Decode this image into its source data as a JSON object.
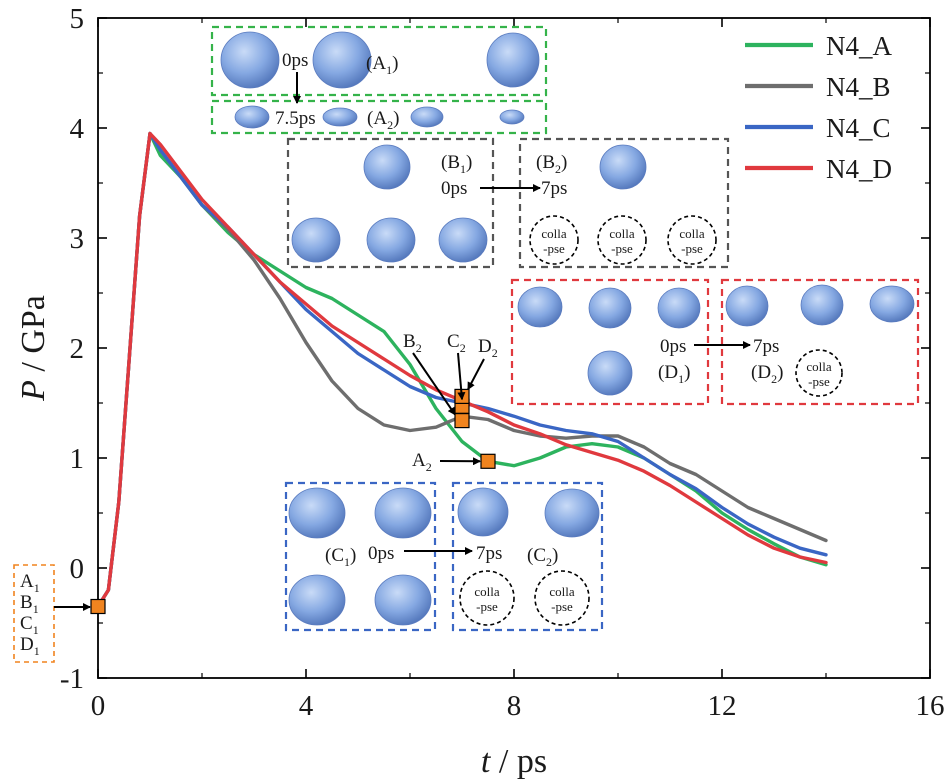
{
  "chart_data": {
    "type": "line",
    "xlabel": {
      "var": "t",
      "unit": " / ps"
    },
    "ylabel": {
      "var": "P",
      "unit": " / GPa"
    },
    "xlim": [
      0,
      16
    ],
    "ylim": [
      -1,
      5
    ],
    "xticks": [
      0,
      4,
      8,
      12,
      16
    ],
    "yticks": [
      -1,
      0,
      1,
      2,
      3,
      4,
      5
    ],
    "xtick_labels": [
      "0",
      "4",
      "8",
      "12",
      "16"
    ],
    "ytick_labels": [
      "-1",
      "0",
      "1",
      "2",
      "3",
      "4",
      "5"
    ],
    "legend_position": "top-right",
    "series": [
      {
        "name": "N4_A",
        "color": "#2db35e",
        "points": [
          [
            0,
            -0.35
          ],
          [
            0.2,
            -0.2
          ],
          [
            0.4,
            0.6
          ],
          [
            0.6,
            1.9
          ],
          [
            0.8,
            3.2
          ],
          [
            1.0,
            3.95
          ],
          [
            1.2,
            3.75
          ],
          [
            1.6,
            3.55
          ],
          [
            2.0,
            3.3
          ],
          [
            2.5,
            3.05
          ],
          [
            3.0,
            2.85
          ],
          [
            3.5,
            2.7
          ],
          [
            4.0,
            2.55
          ],
          [
            4.5,
            2.45
          ],
          [
            5.0,
            2.3
          ],
          [
            5.5,
            2.15
          ],
          [
            6.0,
            1.85
          ],
          [
            6.5,
            1.45
          ],
          [
            7.0,
            1.15
          ],
          [
            7.5,
            0.97
          ],
          [
            8.0,
            0.93
          ],
          [
            8.5,
            1.0
          ],
          [
            9.0,
            1.1
          ],
          [
            9.5,
            1.13
          ],
          [
            10.0,
            1.1
          ],
          [
            10.5,
            1.0
          ],
          [
            11.0,
            0.85
          ],
          [
            11.5,
            0.7
          ],
          [
            12.0,
            0.5
          ],
          [
            12.5,
            0.35
          ],
          [
            13.0,
            0.22
          ],
          [
            13.5,
            0.1
          ],
          [
            14.0,
            0.03
          ]
        ]
      },
      {
        "name": "N4_B",
        "color": "#6e6e6e",
        "points": [
          [
            0,
            -0.35
          ],
          [
            0.2,
            -0.2
          ],
          [
            0.4,
            0.6
          ],
          [
            0.6,
            1.9
          ],
          [
            0.8,
            3.2
          ],
          [
            1.0,
            3.95
          ],
          [
            1.2,
            3.8
          ],
          [
            1.6,
            3.55
          ],
          [
            2.0,
            3.3
          ],
          [
            2.5,
            3.08
          ],
          [
            3.0,
            2.8
          ],
          [
            3.5,
            2.45
          ],
          [
            4.0,
            2.05
          ],
          [
            4.5,
            1.7
          ],
          [
            5.0,
            1.45
          ],
          [
            5.5,
            1.3
          ],
          [
            6.0,
            1.25
          ],
          [
            6.5,
            1.28
          ],
          [
            7.0,
            1.38
          ],
          [
            7.5,
            1.35
          ],
          [
            8.0,
            1.25
          ],
          [
            8.5,
            1.2
          ],
          [
            9.0,
            1.18
          ],
          [
            9.5,
            1.2
          ],
          [
            10.0,
            1.2
          ],
          [
            10.5,
            1.1
          ],
          [
            11.0,
            0.95
          ],
          [
            11.5,
            0.85
          ],
          [
            12.0,
            0.7
          ],
          [
            12.5,
            0.55
          ],
          [
            13.0,
            0.45
          ],
          [
            13.5,
            0.35
          ],
          [
            14.0,
            0.25
          ]
        ]
      },
      {
        "name": "N4_C",
        "color": "#3a66c4",
        "points": [
          [
            0,
            -0.35
          ],
          [
            0.2,
            -0.2
          ],
          [
            0.4,
            0.6
          ],
          [
            0.6,
            1.9
          ],
          [
            0.8,
            3.2
          ],
          [
            1.0,
            3.95
          ],
          [
            1.2,
            3.8
          ],
          [
            1.6,
            3.55
          ],
          [
            2.0,
            3.3
          ],
          [
            2.5,
            3.1
          ],
          [
            3.0,
            2.85
          ],
          [
            3.5,
            2.6
          ],
          [
            4.0,
            2.35
          ],
          [
            4.5,
            2.15
          ],
          [
            5.0,
            1.95
          ],
          [
            5.5,
            1.8
          ],
          [
            6.0,
            1.65
          ],
          [
            6.5,
            1.55
          ],
          [
            7.0,
            1.5
          ],
          [
            7.5,
            1.45
          ],
          [
            8.0,
            1.38
          ],
          [
            8.5,
            1.3
          ],
          [
            9.0,
            1.25
          ],
          [
            9.5,
            1.22
          ],
          [
            10.0,
            1.15
          ],
          [
            10.5,
            1.0
          ],
          [
            11.0,
            0.85
          ],
          [
            11.5,
            0.72
          ],
          [
            12.0,
            0.55
          ],
          [
            12.5,
            0.4
          ],
          [
            13.0,
            0.28
          ],
          [
            13.5,
            0.18
          ],
          [
            14.0,
            0.12
          ]
        ]
      },
      {
        "name": "N4_D",
        "color": "#e0393e",
        "points": [
          [
            0,
            -0.35
          ],
          [
            0.2,
            -0.2
          ],
          [
            0.4,
            0.6
          ],
          [
            0.6,
            1.9
          ],
          [
            0.8,
            3.2
          ],
          [
            1.0,
            3.95
          ],
          [
            1.2,
            3.85
          ],
          [
            1.6,
            3.6
          ],
          [
            2.0,
            3.35
          ],
          [
            2.5,
            3.1
          ],
          [
            3.0,
            2.85
          ],
          [
            3.5,
            2.6
          ],
          [
            4.0,
            2.4
          ],
          [
            4.5,
            2.2
          ],
          [
            5.0,
            2.05
          ],
          [
            5.5,
            1.9
          ],
          [
            6.0,
            1.75
          ],
          [
            6.5,
            1.62
          ],
          [
            7.0,
            1.52
          ],
          [
            7.5,
            1.42
          ],
          [
            8.0,
            1.3
          ],
          [
            8.5,
            1.22
          ],
          [
            9.0,
            1.12
          ],
          [
            9.5,
            1.05
          ],
          [
            10.0,
            0.98
          ],
          [
            10.5,
            0.88
          ],
          [
            11.0,
            0.75
          ],
          [
            11.5,
            0.6
          ],
          [
            12.0,
            0.45
          ],
          [
            12.5,
            0.3
          ],
          [
            13.0,
            0.18
          ],
          [
            13.5,
            0.1
          ],
          [
            14.0,
            0.05
          ]
        ]
      }
    ],
    "markers": [
      {
        "id": "start",
        "x": 0,
        "y": -0.35
      },
      {
        "id": "A2",
        "x": 7.5,
        "y": 0.97
      },
      {
        "id": "B2",
        "x": 7.0,
        "y": 1.34
      },
      {
        "id": "C2",
        "x": 7.0,
        "y": 1.47
      },
      {
        "id": "D2",
        "x": 7.0,
        "y": 1.56
      }
    ],
    "marker_labels": {
      "A2": "A",
      "B2": "B",
      "C2": "C",
      "D2": "D",
      "sub": "2"
    },
    "start_box_labels": [
      {
        "main": "A",
        "sub": "1"
      },
      {
        "main": "B",
        "sub": "1"
      },
      {
        "main": "C",
        "sub": "1"
      },
      {
        "main": "D",
        "sub": "1"
      }
    ],
    "insets": {
      "A": {
        "color": "#35b34a",
        "t0": "0ps",
        "t1": "7.5ps",
        "label1": {
          "main": "(A",
          "sub": "1",
          "tail": ")"
        },
        "label2": {
          "main": "(A",
          "sub": "2",
          "tail": ")"
        }
      },
      "B": {
        "color": "#555555",
        "t0": "0ps",
        "t1": "7ps",
        "label1": {
          "main": "(B",
          "sub": "1",
          "tail": ")"
        },
        "label2": {
          "main": "(B",
          "sub": "2",
          "tail": ")"
        },
        "collapse_top": "colla",
        "collapse_bottom": "-pse"
      },
      "C": {
        "color": "#3a66c4",
        "t0": "0ps",
        "t1": "7ps",
        "label1": {
          "main": "(C",
          "sub": "1",
          "tail": ")"
        },
        "label2": {
          "main": "(C",
          "sub": "2",
          "tail": ")"
        },
        "collapse_top": "colla",
        "collapse_bottom": "-pse"
      },
      "D": {
        "color": "#e0393e",
        "t0": "0ps",
        "t1": "7ps",
        "label1": {
          "main": "(D",
          "sub": "1",
          "tail": ")"
        },
        "label2": {
          "main": "(D",
          "sub": "2",
          "tail": ")"
        },
        "collapse_top": "colla",
        "collapse_bottom": "-pse"
      }
    },
    "marker_color": "#f0841f",
    "bubble_color": "#7b9fdc"
  }
}
